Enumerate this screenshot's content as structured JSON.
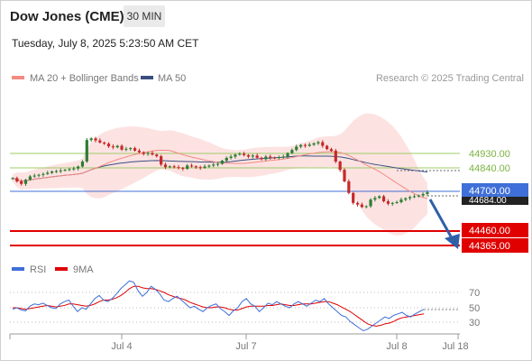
{
  "header": {
    "title": "Dow Jones (CME)",
    "timeframe": "30 MIN",
    "timestamp": "Tuesday, July 8, 2025 5:23:50 AM CET"
  },
  "legend": {
    "ma20": "MA 20 + Bollinger Bands",
    "ma50": "MA 50",
    "credit": "Research © 2025 Trading Central"
  },
  "colors": {
    "up": "#2e7d32",
    "down": "#c62828",
    "ma20": "#f28b82",
    "ma50": "#3a4f80",
    "band": "#fde2e2",
    "resistance": "#9ccc65",
    "pivot": "#3f6fd8",
    "support": "#e00000",
    "rsi": "#3f6fd8",
    "rsi_ma": "#e00000"
  },
  "chart_data": [
    {
      "type": "candlestick",
      "title": "",
      "x_ticks": [
        "Jul 4",
        "Jul 7",
        "Jul 8",
        "Jul 18"
      ],
      "y_range": [
        44280,
        45040
      ],
      "close_series": [
        44780,
        44760,
        44745,
        44770,
        44790,
        44795,
        44800,
        44805,
        44812,
        44820,
        44822,
        44826,
        44830,
        44834,
        44838,
        44850,
        44880,
        45010,
        45020,
        45008,
        44995,
        44988,
        44972,
        44966,
        44975,
        44952,
        44957,
        44961,
        44946,
        44936,
        44926,
        44932,
        44922,
        44912,
        44862,
        44846,
        44851,
        44846,
        44842,
        44836,
        44856,
        44851,
        44846,
        44842,
        44850,
        44856,
        44862,
        44866,
        44885,
        44902,
        44910,
        44922,
        44927,
        44919,
        44910,
        44916,
        44903,
        44894,
        44910,
        44904,
        44901,
        44907,
        44910,
        44931,
        44950,
        44970,
        44980,
        44975,
        44982,
        44990,
        44997,
        44975,
        44955,
        44945,
        44880,
        44830,
        44760,
        44690,
        44630,
        44620,
        44605,
        44610,
        44650,
        44660,
        44670,
        44640,
        44625,
        44630,
        44635,
        44650,
        44658,
        44665,
        44670,
        44675,
        44684,
        44694
      ],
      "price_levels": [
        {
          "label": "44930.00",
          "role": "resistance"
        },
        {
          "label": "44840.00",
          "role": "resistance"
        },
        {
          "label": "44700.00",
          "role": "pivot"
        },
        {
          "label": "44684.00",
          "role": "last price"
        },
        {
          "label": "44460.00",
          "role": "support"
        },
        {
          "label": "44365.00",
          "role": "support"
        }
      ],
      "indicators": [
        "MA 20 + Bollinger Bands",
        "MA 50"
      ],
      "forecast": "bearish arrow toward 44365.00"
    },
    {
      "type": "line",
      "title": "RSI",
      "series": [
        {
          "name": "RSI",
          "values": [
            48,
            50,
            47,
            46,
            52,
            55,
            54,
            56,
            53,
            50,
            49,
            55,
            58,
            60,
            52,
            45,
            50,
            48,
            55,
            62,
            66,
            60,
            58,
            62,
            68,
            75,
            80,
            85,
            83,
            72,
            65,
            70,
            78,
            74,
            68,
            60,
            58,
            62,
            65,
            60,
            55,
            50,
            52,
            48,
            45,
            50,
            53,
            55,
            49,
            45,
            40,
            46,
            50,
            58,
            62,
            55,
            52,
            45,
            50,
            56,
            54,
            58,
            55,
            52,
            50,
            55,
            58,
            55,
            52,
            56,
            60,
            58,
            62,
            55,
            50,
            45,
            40,
            38,
            32,
            28,
            24,
            20,
            22,
            26,
            30,
            34,
            38,
            36,
            40,
            42,
            44,
            40,
            38,
            42,
            45,
            48
          ]
        },
        {
          "name": "9MA",
          "values": [
            50,
            50,
            49,
            48,
            49,
            50,
            51,
            52,
            53,
            52,
            51,
            52,
            53,
            55,
            55,
            54,
            53,
            52,
            53,
            55,
            58,
            60,
            60,
            61,
            63,
            66,
            70,
            75,
            78,
            78,
            76,
            75,
            75,
            74,
            72,
            70,
            67,
            65,
            63,
            62,
            60,
            57,
            55,
            53,
            51,
            50,
            50,
            51,
            51,
            50,
            48,
            47,
            47,
            49,
            51,
            52,
            52,
            52,
            52,
            53,
            53,
            54,
            55,
            54,
            53,
            53,
            54,
            55,
            55,
            55,
            56,
            57,
            58,
            58,
            56,
            54,
            51,
            48,
            45,
            41,
            37,
            33,
            29,
            27,
            26,
            27,
            29,
            30,
            32,
            35,
            37,
            38,
            39,
            40,
            41,
            42
          ]
        }
      ],
      "y_ticks": [
        70,
        50,
        30
      ]
    }
  ]
}
